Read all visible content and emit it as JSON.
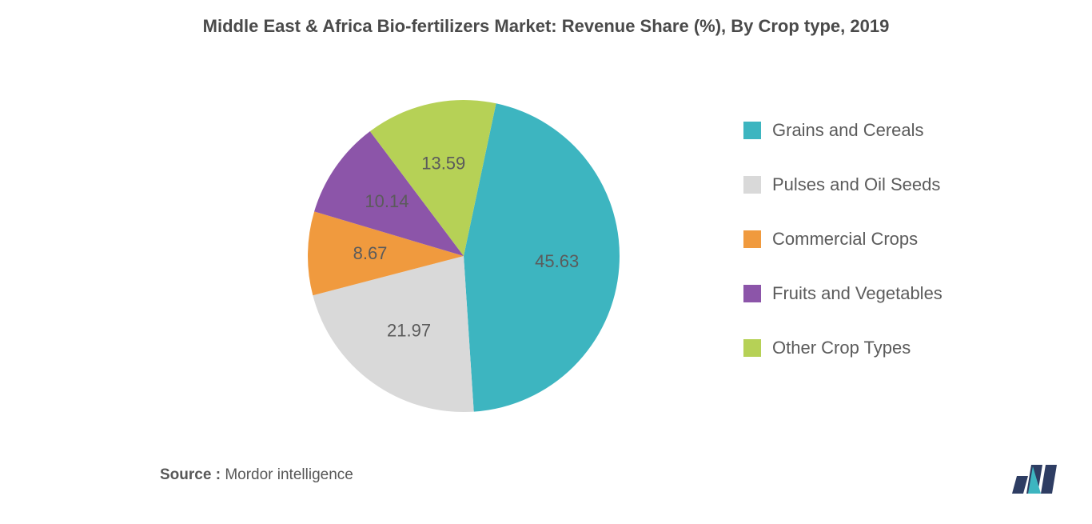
{
  "chart": {
    "type": "pie",
    "title": "Middle East & Africa Bio-fertilizers Market: Revenue Share (%), By Crop type, 2019",
    "title_fontsize": 22,
    "title_color": "#4a4a4a",
    "background_color": "#ffffff",
    "radius": 195,
    "start_angle_deg": -78,
    "slices": [
      {
        "label": "Grains and Cereals",
        "value": 45.63,
        "color": "#3db5c0"
      },
      {
        "label": "Pulses and Oil Seeds",
        "value": 21.97,
        "color": "#d9d9d9"
      },
      {
        "label": "Commercial Crops",
        "value": 8.67,
        "color": "#f09a3e"
      },
      {
        "label": "Fruits and Vegetables",
        "value": 10.14,
        "color": "#8c55a9"
      },
      {
        "label": "Other Crop Types",
        "value": 13.59,
        "color": "#b6d156"
      }
    ],
    "label_fontsize": 22,
    "label_color": "#5b5b5b",
    "label_radius_factor": 0.6,
    "legend_fontsize": 22,
    "legend_color": "#5b5b5b"
  },
  "source": {
    "label": "Source :",
    "value": "Mordor intelligence",
    "fontsize": 19,
    "color": "#575757"
  },
  "logo": {
    "bar_color": "#2e3d63",
    "accent_color": "#3db5c0"
  }
}
